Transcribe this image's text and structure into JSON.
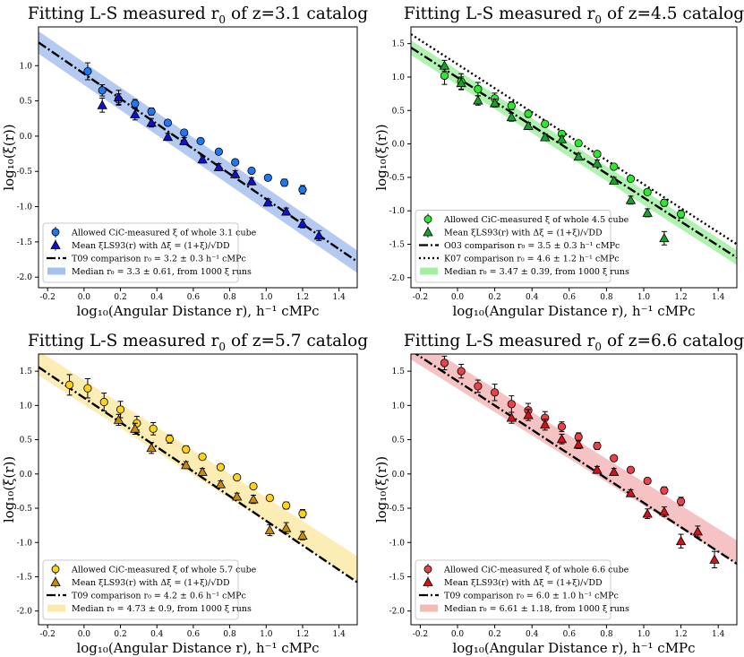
{
  "chart_data": [
    {
      "type": "scatter",
      "title": "Fitting L-S measured r",
      "title_sub": "0",
      "title_tail": " of z=3.1 catalog",
      "xlabel": "log₁₀(Angular Distance r), h⁻¹ cMPc",
      "ylabel": "log₁₀(ξ(r))",
      "xlim": [
        -0.25,
        1.5
      ],
      "ylim": [
        -2.15,
        1.55
      ],
      "xticks": [
        -0.2,
        0.0,
        0.2,
        0.4,
        0.6,
        0.8,
        1.0,
        1.2,
        1.4
      ],
      "yticks": [
        -2.0,
        -1.5,
        -1.0,
        -0.5,
        0.0,
        0.5,
        1.0
      ],
      "colors": {
        "marker": "#1f77f4",
        "triangle": "#1010cc",
        "band": "#a7c1ef"
      },
      "series": [
        {
          "name": "Allowed CiC-measured ξ̄ of whole 3.1 cube",
          "marker": "circle",
          "x": [
            0.02,
            0.1,
            0.19,
            0.28,
            0.37,
            0.46,
            0.55,
            0.64,
            0.74,
            0.83,
            0.92,
            1.01,
            1.1,
            1.2
          ],
          "y": [
            0.92,
            0.65,
            0.52,
            0.46,
            0.35,
            0.19,
            0.05,
            -0.07,
            -0.22,
            -0.37,
            -0.49,
            -0.59,
            -0.66,
            -0.76
          ],
          "err": [
            0.12,
            0.08,
            0.08,
            0.06,
            0.05,
            0.04,
            0.04,
            0.03,
            0.03,
            0.03,
            0.03,
            0.04,
            0.05,
            0.06
          ]
        },
        {
          "name": "Mean ξLS93(r) with Δξ = (1+ξ)/√DD",
          "marker": "triangle",
          "x": [
            0.1,
            0.19,
            0.28,
            0.37,
            0.46,
            0.55,
            0.65,
            0.74,
            0.83,
            0.92,
            1.01,
            1.11,
            1.2,
            1.29
          ],
          "y": [
            0.44,
            0.55,
            0.31,
            0.19,
            -0.01,
            -0.07,
            -0.33,
            -0.44,
            -0.54,
            -0.64,
            -0.94,
            -1.07,
            -1.24,
            -1.41
          ],
          "err": [
            0.1,
            0.1,
            0.08,
            0.06,
            0.05,
            0.05,
            0.05,
            0.05,
            0.05,
            0.05,
            0.05,
            0.05,
            0.06,
            0.07
          ]
        }
      ],
      "fit_lines": [
        {
          "name": "T09 comparison r₀ = 3.2 ± 0.3 h⁻¹ cMPc",
          "style": "dashdot",
          "x": [
            -0.25,
            1.5
          ],
          "y": [
            1.33,
            -1.78
          ]
        }
      ],
      "band": {
        "name": "Median r₀ = 3.3 ± 0.61, from 1000 ξ runs",
        "x": [
          -0.25,
          1.5
        ],
        "y_mid": [
          1.33,
          -1.78
        ],
        "half_width": 0.16
      },
      "legend": "lower-left",
      "grid": false
    },
    {
      "type": "scatter",
      "title": "Fitting L-S measured r",
      "title_sub": "0",
      "title_tail": " of z=4.5 catalog",
      "xlabel": "log₁₀(Angular Distance r), h⁻¹ cMPc",
      "ylabel": "log₁₀(ξ(r))",
      "xlim": [
        -0.25,
        1.5
      ],
      "ylim": [
        -2.15,
        1.75
      ],
      "xticks": [
        -0.2,
        0.0,
        0.2,
        0.4,
        0.6,
        0.8,
        1.0,
        1.2,
        1.4
      ],
      "yticks": [
        -2.0,
        -1.5,
        -1.0,
        -0.5,
        0.0,
        0.5,
        1.0,
        1.5
      ],
      "colors": {
        "marker": "#2ee82e",
        "triangle": "#1d9f2e",
        "band": "#a2f0a2"
      },
      "series": [
        {
          "name": "Allowed CiC-measured ξ̄ of whole 4.5 cube",
          "marker": "circle",
          "x": [
            -0.07,
            0.02,
            0.11,
            0.2,
            0.29,
            0.38,
            0.47,
            0.56,
            0.65,
            0.75,
            0.84,
            0.93,
            1.02,
            1.11,
            1.2
          ],
          "y": [
            1.02,
            0.93,
            0.82,
            0.68,
            0.57,
            0.45,
            0.3,
            0.15,
            0.01,
            -0.15,
            -0.34,
            -0.52,
            -0.72,
            -0.88,
            -1.05
          ],
          "err": [
            0.13,
            0.12,
            0.1,
            0.08,
            0.06,
            0.05,
            0.04,
            0.04,
            0.03,
            0.03,
            0.03,
            0.03,
            0.04,
            0.05,
            0.06
          ]
        },
        {
          "name": "Mean ξLS93(r) with Δξ = (1+ξ)/√DD",
          "marker": "triangle",
          "x": [
            -0.07,
            0.02,
            0.11,
            0.2,
            0.29,
            0.38,
            0.47,
            0.56,
            0.65,
            0.75,
            0.84,
            0.93,
            1.02,
            1.11
          ],
          "y": [
            1.17,
            0.91,
            0.65,
            0.61,
            0.4,
            0.27,
            0.1,
            0.07,
            -0.19,
            -0.29,
            -0.55,
            -0.84,
            -1.03,
            -1.41
          ],
          "err": [
            0.08,
            0.09,
            0.07,
            0.06,
            0.06,
            0.05,
            0.05,
            0.05,
            0.05,
            0.05,
            0.05,
            0.06,
            0.06,
            0.1
          ]
        }
      ],
      "fit_lines": [
        {
          "name": "O03 comparison r₀ = 3.5 ± 0.3 h⁻¹ cMPc",
          "style": "dashdot",
          "x": [
            -0.25,
            1.5
          ],
          "y": [
            1.44,
            -1.7
          ]
        },
        {
          "name": "K07 comparison r₀ = 4.6 ± 1.2 h⁻¹ cMPc",
          "style": "dotted",
          "x": [
            -0.25,
            1.5
          ],
          "y": [
            1.64,
            -1.5
          ]
        }
      ],
      "band": {
        "name": "Median r₀ = 3.47 ± 0.39, from 1000 ξ runs",
        "x": [
          -0.25,
          1.5
        ],
        "y_mid": [
          1.44,
          -1.7
        ],
        "half_width": 0.11
      },
      "legend": "lower-left",
      "grid": false
    },
    {
      "type": "scatter",
      "title": "Fitting L-S measured r",
      "title_sub": "0",
      "title_tail": " of z=5.7 catalog",
      "xlabel": "log₁₀(Angular Distance r), h⁻¹ cMPc",
      "ylabel": "log₁₀(ξ(r))",
      "xlim": [
        -0.25,
        1.5
      ],
      "ylim": [
        -2.2,
        1.75
      ],
      "xticks": [
        -0.2,
        0.0,
        0.2,
        0.4,
        0.6,
        0.8,
        1.0,
        1.2,
        1.4
      ],
      "yticks": [
        -2.0,
        -1.5,
        -1.0,
        -0.5,
        0.0,
        0.5,
        1.0,
        1.5
      ],
      "colors": {
        "marker": "#ffd21a",
        "triangle": "#c98a10",
        "band": "#fbeaa8"
      },
      "series": [
        {
          "name": "Allowed CiC-measured ξ̄ of whole 5.7 cube",
          "marker": "circle",
          "x": [
            -0.08,
            0.02,
            0.11,
            0.2,
            0.29,
            0.38,
            0.47,
            0.56,
            0.65,
            0.75,
            0.84,
            0.93,
            1.02,
            1.11,
            1.2
          ],
          "y": [
            1.3,
            1.25,
            1.05,
            0.94,
            0.74,
            0.66,
            0.51,
            0.36,
            0.25,
            0.1,
            -0.05,
            -0.18,
            -0.35,
            -0.46,
            -0.58
          ],
          "err": [
            0.15,
            0.14,
            0.13,
            0.12,
            0.1,
            0.09,
            0.06,
            0.05,
            0.04,
            0.04,
            0.04,
            0.04,
            0.04,
            0.05,
            0.06
          ]
        },
        {
          "name": "Mean ξLS93(r) with Δξ = (1+ξ)/√DD",
          "marker": "triangle",
          "x": [
            0.19,
            0.28,
            0.37,
            0.56,
            0.65,
            0.75,
            0.84,
            0.93,
            1.02,
            1.11,
            1.2
          ],
          "y": [
            0.79,
            0.66,
            0.38,
            0.13,
            0.03,
            -0.15,
            -0.33,
            -0.37,
            -0.82,
            -0.79,
            -0.9
          ],
          "err": [
            0.08,
            0.08,
            0.08,
            0.05,
            0.05,
            0.05,
            0.05,
            0.06,
            0.08,
            0.08,
            0.06
          ]
        }
      ],
      "fit_lines": [
        {
          "name": "T09 comparison r₀ = 4.2 ± 0.6  h⁻¹ cMPc",
          "style": "dashdot",
          "x": [
            -0.25,
            1.5
          ],
          "y": [
            1.56,
            -1.58
          ]
        }
      ],
      "band": {
        "name": "Median r₀ = 4.73 ± 0.9, from 1000 ξ runs",
        "x": [
          -0.25,
          1.5
        ],
        "y_mid": [
          1.62,
          -1.38
        ],
        "half_width": 0.18
      },
      "legend": "lower-left",
      "grid": false
    },
    {
      "type": "scatter",
      "title": "Fitting L-S measured r",
      "title_sub": "0",
      "title_tail": " of z=6.6 catalog",
      "xlabel": "log₁₀(Angular Distance r), h⁻¹ cMPc",
      "ylabel": "log₁₀(ξ(r))",
      "xlim": [
        -0.25,
        1.5
      ],
      "ylim": [
        -2.2,
        1.75
      ],
      "xticks": [
        -0.2,
        0.0,
        0.2,
        0.4,
        0.6,
        0.8,
        1.0,
        1.2,
        1.4
      ],
      "yticks": [
        -2.0,
        -1.5,
        -1.0,
        -0.5,
        0.0,
        0.5,
        1.0,
        1.5
      ],
      "colors": {
        "marker": "#e8424a",
        "triangle": "#d0141a",
        "band": "#f3b9b9"
      },
      "series": [
        {
          "name": "Allowed CiC-measured ξ̄ of whole 6.6 cube",
          "marker": "circle",
          "x": [
            -0.07,
            0.02,
            0.11,
            0.2,
            0.29,
            0.38,
            0.47,
            0.56,
            0.65,
            0.75,
            0.84,
            0.93,
            1.02,
            1.11,
            1.2
          ],
          "y": [
            1.62,
            1.5,
            1.28,
            1.19,
            1.02,
            0.93,
            0.82,
            0.69,
            0.54,
            0.41,
            0.23,
            0.06,
            -0.1,
            -0.24,
            -0.4
          ],
          "err": [
            0.1,
            0.1,
            0.09,
            0.12,
            0.12,
            0.1,
            0.09,
            0.07,
            0.06,
            0.05,
            0.04,
            0.04,
            0.04,
            0.05,
            0.06
          ]
        },
        {
          "name": "Mean ξLS93(r) with Δξ = (1+ξ)/√DD",
          "marker": "triangle",
          "x": [
            0.29,
            0.38,
            0.47,
            0.56,
            0.65,
            0.75,
            0.84,
            0.93,
            1.02,
            1.11,
            1.2,
            1.29,
            1.38
          ],
          "y": [
            0.82,
            0.86,
            0.72,
            0.51,
            0.43,
            0.06,
            0.03,
            -0.28,
            -0.58,
            -0.55,
            -0.98,
            -0.84,
            -1.25
          ],
          "err": [
            0.08,
            0.08,
            0.08,
            0.07,
            0.06,
            0.05,
            0.05,
            0.05,
            0.07,
            0.07,
            0.1,
            0.08,
            0.12
          ]
        }
      ],
      "fit_lines": [
        {
          "name": "T09 comparison r₀ = 6.0 ± 1.0 h⁻¹ cMPc",
          "style": "dashdot",
          "x": [
            -0.25,
            1.5
          ],
          "y": [
            1.8,
            -1.31
          ]
        }
      ],
      "band": {
        "name": "Median r₀ = 6.61 ± 1.18, from 1000 ξ runs",
        "x": [
          -0.25,
          1.5
        ],
        "y_mid": [
          1.84,
          -1.14
        ],
        "half_width": 0.17
      },
      "legend": "lower-left",
      "grid": false
    }
  ]
}
